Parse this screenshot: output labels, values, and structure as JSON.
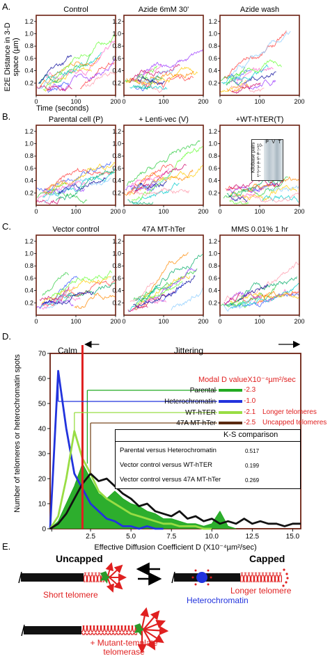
{
  "panel_labels": [
    "A.",
    "B.",
    "C.",
    "D.",
    "E."
  ],
  "shared_axes": {
    "ylabel_line1": "E2E Distance in 3-D",
    "ylabel_line2": "space (µm)",
    "xlabel": "Time (seconds)",
    "y_ticks": [
      "0",
      "0.2",
      "0.4",
      "0.6",
      "0.8",
      "1.0",
      "1.2"
    ],
    "x_ticks": [
      "0",
      "100",
      "200"
    ]
  },
  "rows": [
    {
      "label": "A.",
      "titles": [
        "Control",
        "Azide 6mM 30'",
        "Azide wash"
      ]
    },
    {
      "label": "B.",
      "titles": [
        "Parental cell (P)",
        "+ Lenti-vec (V)",
        "+WT-hTER(T)"
      ]
    },
    {
      "label": "C.",
      "titles": [
        "Vector control",
        "47A MT-hTer",
        "MMS 0.01% 1 hr"
      ]
    }
  ],
  "gel_inset": {
    "ylabel": "Kilobase pairs",
    "lanes": [
      "P",
      "V",
      "T"
    ],
    "marker_labels": [
      "10-",
      "7-",
      "6-",
      "5-",
      "4-",
      "3-",
      "2-",
      "1-"
    ]
  },
  "colors": {
    "frame": "#6b1f10",
    "parental": "#22aa22",
    "heterochromatin": "#2233dd",
    "wt_hter": "#99dd44",
    "mt_hter": "#111111",
    "accent_red": "#e02020"
  },
  "panel_d": {
    "calm_label": "Calm",
    "jittering_label": "Jittering",
    "ylabel": "Number of telomeres or heterochromatin spots",
    "xlabel": "Effective Diffusion Coefficient D (X10⁻⁴µm²/sec)",
    "modal_header": "Modal D valueX10⁻⁴µm²/sec",
    "legend": [
      {
        "name": "Parental",
        "modal": "-2.3",
        "note": ""
      },
      {
        "name": "Heterochromatin",
        "modal": "-1.0",
        "note": ""
      },
      {
        "name": "WT-hTER",
        "modal": "-2.1",
        "note": "Longer telomeres"
      },
      {
        "name": "47A MT-hTer",
        "modal": "-2.5",
        "note": "Uncapped telomeres"
      }
    ],
    "ks_table": {
      "header": "K-S comparison",
      "rows": [
        {
          "label": "Parental versus Heterochromatin",
          "value": "0.517"
        },
        {
          "label": "Vector control versus WT-hTER",
          "value": "0.199"
        },
        {
          "label": "Vector control versus 47A MT-hTer",
          "value": "0.269"
        }
      ]
    }
  },
  "chart_data": {
    "type": "line",
    "title": "",
    "xlabel": "Effective Diffusion Coefficient D (X10⁻⁴µm²/sec)",
    "ylabel": "Number of telomeres or heterochromatin spots",
    "xlim": [
      0,
      15.5
    ],
    "ylim": [
      0,
      70
    ],
    "x_ticks": [
      "2.5",
      "5.0",
      "7.5",
      "10.0",
      "12.5",
      "15.0"
    ],
    "y_ticks": [
      "0",
      "10",
      "20",
      "30",
      "40",
      "50",
      "60",
      "70"
    ],
    "calm_threshold": 2.0,
    "series": [
      {
        "name": "Parental",
        "color": "#22aa22",
        "fill": true,
        "x": [
          0,
          0.5,
          1.0,
          1.5,
          2.0,
          2.5,
          3.0,
          3.5,
          4.0,
          4.5,
          5.0,
          5.5,
          6.0,
          6.5,
          7.0,
          7.5,
          8.0,
          8.5,
          9.0,
          9.5,
          10.0,
          10.5,
          11.0,
          11.5
        ],
        "values": [
          0,
          3,
          10,
          17,
          26,
          20,
          14,
          12,
          15,
          12,
          10,
          9,
          7,
          6,
          4,
          4,
          3,
          2,
          2,
          1,
          2,
          7,
          1,
          0
        ]
      },
      {
        "name": "Heterochromatin",
        "color": "#2233dd",
        "fill": false,
        "x": [
          0,
          0.5,
          1.0,
          1.5,
          2.0,
          2.5,
          3.0,
          3.5,
          4.0,
          4.5,
          5.0,
          5.5,
          6.0,
          6.5,
          7.0
        ],
        "values": [
          0,
          63,
          40,
          22,
          16,
          10,
          7,
          4,
          3,
          1,
          1,
          0,
          1,
          0,
          0
        ]
      },
      {
        "name": "WT-hTER",
        "color": "#99dd44",
        "fill": false,
        "x": [
          0,
          0.5,
          1.0,
          1.5,
          2.0,
          2.5,
          3.0,
          3.5,
          4.0,
          4.5,
          5.0,
          5.5,
          6.0,
          6.5,
          7.0,
          7.5,
          8.0,
          8.5,
          9.0,
          9.5,
          10.0
        ],
        "values": [
          0,
          5,
          20,
          39,
          28,
          22,
          15,
          12,
          10,
          8,
          6,
          5,
          4,
          3,
          2,
          2,
          1,
          1,
          1,
          0,
          0
        ]
      },
      {
        "name": "47A MT-hTer",
        "color": "#111111",
        "fill": false,
        "x": [
          0,
          0.5,
          1.0,
          1.5,
          2.0,
          2.5,
          3.0,
          3.5,
          4.0,
          4.5,
          5.0,
          5.5,
          6.0,
          6.5,
          7.0,
          7.5,
          8.0,
          8.5,
          9.0,
          9.5,
          10.0,
          10.5,
          11.0,
          11.5,
          12.0,
          12.5,
          13.0,
          13.5,
          14.0,
          14.5,
          15.0,
          15.5
        ],
        "values": [
          0,
          2,
          6,
          12,
          18,
          22,
          19,
          20,
          17,
          14,
          12,
          9,
          10,
          7,
          6,
          5,
          7,
          4,
          5,
          3,
          4,
          2,
          3,
          2,
          4,
          2,
          3,
          2,
          2,
          1,
          2,
          2
        ]
      }
    ]
  },
  "panel_e": {
    "uncapped_label": "Uncapped",
    "capped_label": "Capped",
    "short_telomere_label": "Short telomere",
    "longer_telomere_label": "Longer telomere",
    "heterochromatin_label": "Heterochromatin",
    "mutant_label_line1": "+ Mutant-template",
    "mutant_label_line2": "telomerase"
  }
}
